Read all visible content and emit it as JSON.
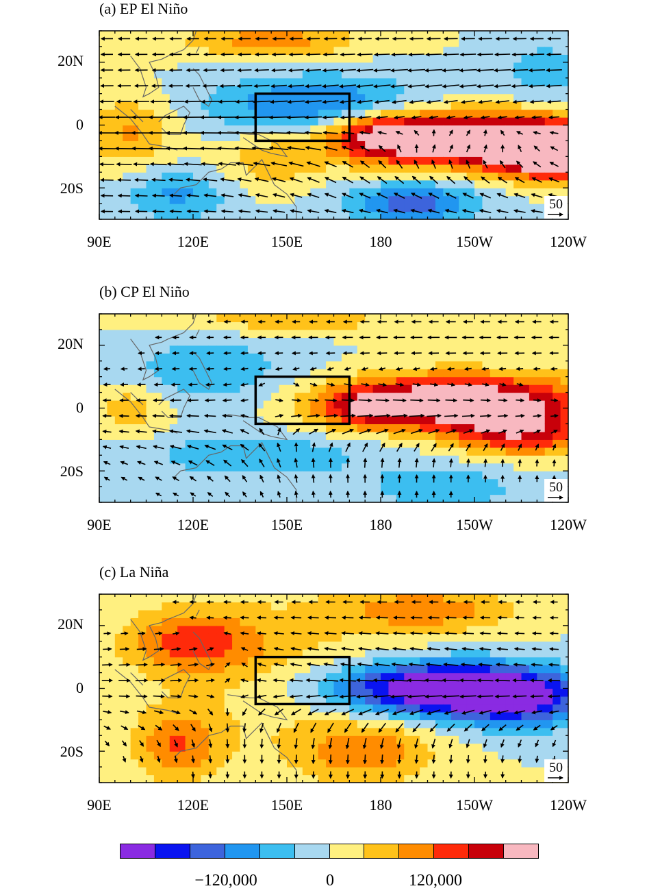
{
  "panels": [
    {
      "title": "(a) EP El Niño",
      "scenario": "ep",
      "ref_vector": "50",
      "x_ticks": [
        "90E",
        "120E",
        "150E",
        "180",
        "150W",
        "120W"
      ],
      "y_ticks": [
        "20N",
        "0",
        "20S"
      ]
    },
    {
      "title": "(b) CP El Niño",
      "scenario": "cp",
      "ref_vector": "50",
      "x_ticks": [
        "90E",
        "120E",
        "150E",
        "180",
        "150W",
        "120W"
      ],
      "y_ticks": [
        "20N",
        "0",
        "20S"
      ]
    },
    {
      "title": "(c) La Niña",
      "scenario": "la",
      "ref_vector": "50",
      "x_ticks": [
        "90E",
        "120E",
        "150E",
        "180",
        "150W",
        "120W"
      ],
      "y_ticks": [
        "20N",
        "0",
        "20S"
      ]
    }
  ],
  "colorbar": {
    "colors": [
      "#8a2be2",
      "#0a14f0",
      "#3d64dc",
      "#2196f0",
      "#3cbef0",
      "#a8d8f0",
      "#fff080",
      "#ffc21a",
      "#ff8c00",
      "#ff2a0a",
      "#c8000a",
      "#f8b8c0"
    ],
    "labels": [
      "−120,000",
      "0",
      "120,000"
    ]
  }
}
